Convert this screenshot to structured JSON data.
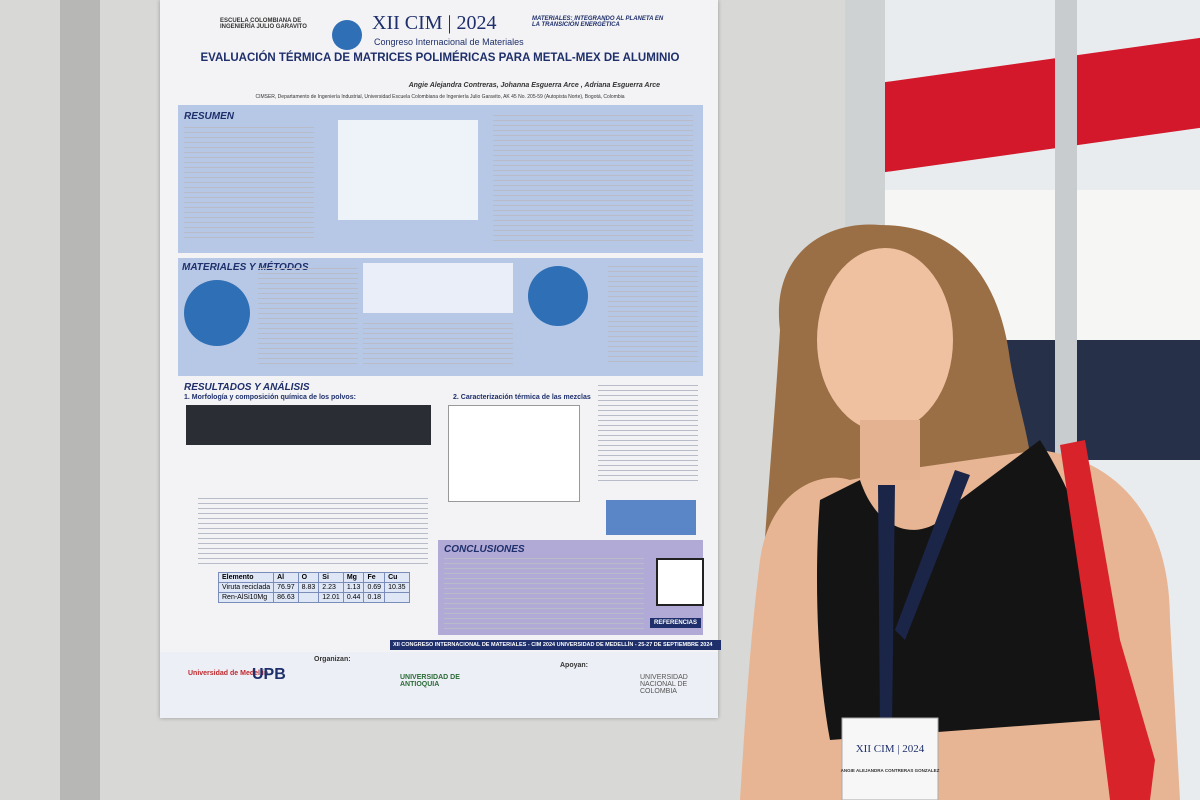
{
  "poster": {
    "header": {
      "university": "ESCUELA COLOMBIANA DE INGENIERÍA JULIO GARAVITO",
      "event": "XII CIM | 2024",
      "event_name": "Congreso Internacional de Materiales",
      "slogan": "MATERIALES: INTEGRANDO AL PLANETA EN LA TRANSICIÓN ENERGÉTICA"
    },
    "title": "EVALUACIÓN TÉRMICA DE MATRICES POLIMÉRICAS PARA METAL-MEX DE ALUMINIO",
    "authors": "Angie Alejandra Contreras, Johanna Esguerra Arce , Adriana Esguerra Arce",
    "affiliation": "CIMSER, Departamento de Ingeniería Industrial, Universidad Escuela Colombiana de Ingeniería Julio Garavito, AK 45 No. 205-59 (Autopista Norte), Bogotá, Colombia",
    "sections": {
      "summary": "RESUMEN",
      "methods": "MATERIALES Y MÉTODOS",
      "results": "RESULTADOS Y ANÁLISIS",
      "results_1": "1. Morfología y composición química de los polvos:",
      "results_2": "2. Caracterización térmica de las mezclas",
      "conclusions": "CONCLUSIONES"
    },
    "table": {
      "header": [
        "Elemento",
        "Al",
        "O",
        "Si",
        "Mg",
        "Fe",
        "Cu"
      ],
      "rows": [
        [
          "Viruta reciclada",
          "76.97",
          "8.83",
          "2.23",
          "1.13",
          "0.69",
          "10.35"
        ],
        [
          "Ren-AlSi10Mg",
          "86.63",
          "",
          "12.01",
          "0.44",
          "0.18",
          ""
        ]
      ]
    },
    "references": "REFERENCIAS",
    "footer": "XII CONGRESO INTERNACIONAL DE MATERIALES - CIM 2024 UNIVERSIDAD DE MEDELLÍN - 25-27 DE SEPTIEMBRE 2024",
    "organizers_label": "Organizan:",
    "supporters_label": "Apoyan:",
    "logos": [
      "Universidad de Medellín",
      "UPB",
      "UNIVERSIDAD DE ANTIOQUIA",
      "UNIVERSIDAD NACIONAL DE COLOMBIA"
    ]
  },
  "badge": {
    "event": "XII CIM | 2024",
    "name": "ANGIE ALEJANDRA CONTRERAS GONZALEZ"
  }
}
